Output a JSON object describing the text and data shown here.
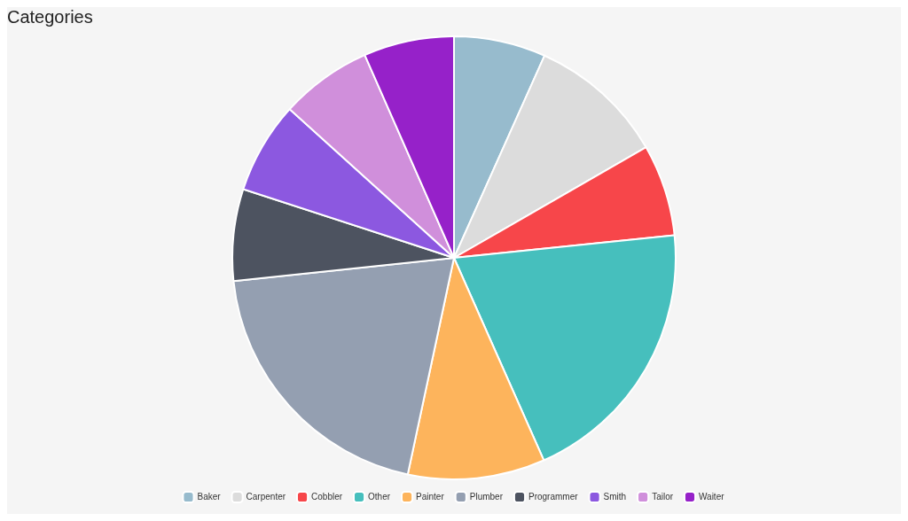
{
  "chart_data": {
    "type": "pie",
    "title": "Categories",
    "categories": [
      "Baker",
      "Carpenter",
      "Cobbler",
      "Other",
      "Painter",
      "Plumber",
      "Programmer",
      "Smith",
      "Tailor",
      "Waiter"
    ],
    "values": [
      6.7,
      10,
      6.7,
      20,
      10,
      20,
      6.7,
      6.7,
      6.7,
      6.6
    ],
    "colors": [
      "#97bbcd",
      "#dcdcdc",
      "#f7464a",
      "#46bfbd",
      "#fdb45c",
      "#949fb1",
      "#4d5360",
      "#8c58e0",
      "#d08fdb",
      "#9621c9"
    ],
    "legend": "bottom"
  }
}
